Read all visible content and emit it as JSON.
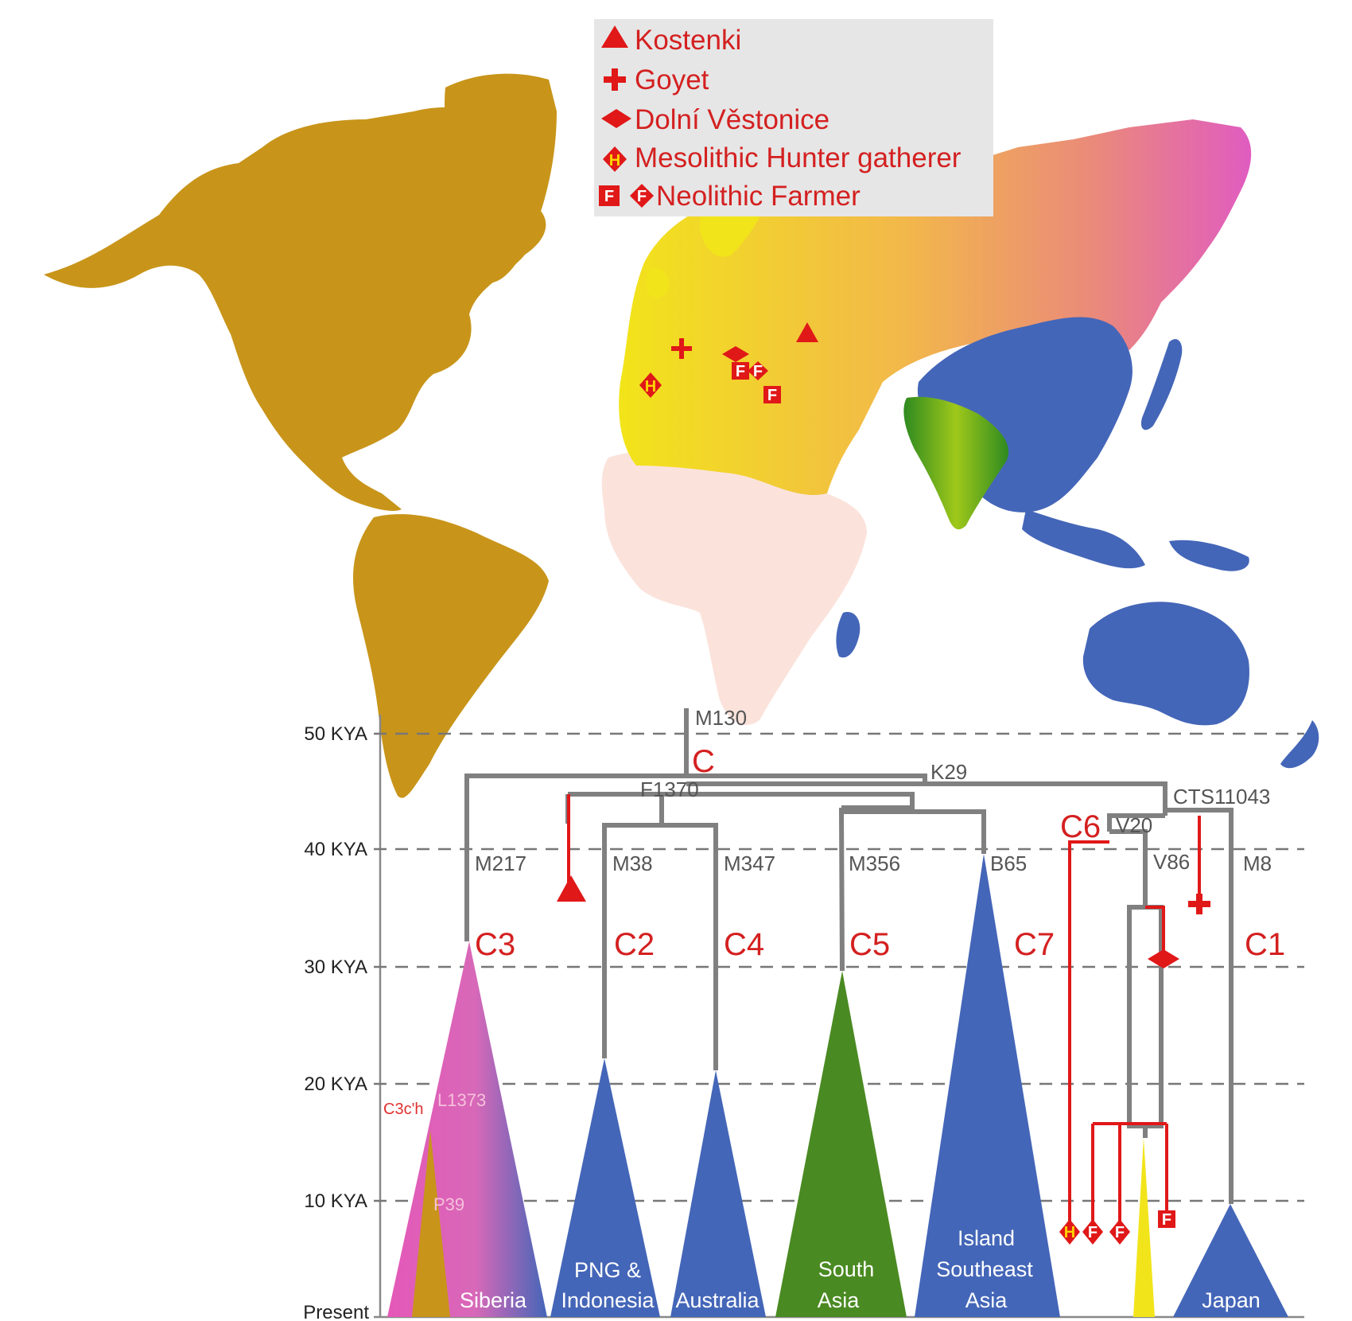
{
  "legend": {
    "kostenki": "Kostenki",
    "goyet": "Goyet",
    "dolni": "Dolní Věstonice",
    "mesolithic": "Mesolithic Hunter gatherer",
    "neolithic": "Neolithic Farmer",
    "h_letter": "H",
    "f_letter": "F"
  },
  "axis": {
    "y50": "50 KYA",
    "y40": "40 KYA",
    "y30": "30 KYA",
    "y20": "20 KYA",
    "y10": "10 KYA",
    "present": "Present"
  },
  "markers": {
    "m130": "M130",
    "k29": "K29",
    "f1370": "F1370",
    "cts11043": "CTS11043",
    "v20": "V20",
    "m217": "M217",
    "m38": "M38",
    "m347": "M347",
    "m356": "M356",
    "b65": "B65",
    "v86": "V86",
    "m8": "M8",
    "l1373": "L1373",
    "p39": "P39",
    "c3ch": "C3c'h"
  },
  "clades": {
    "c": "C",
    "c1": "C1",
    "c2": "C2",
    "c3": "C3",
    "c4": "C4",
    "c5": "C5",
    "c6": "C6",
    "c7": "C7"
  },
  "regions": {
    "siberia": "Siberia",
    "png1": "PNG &",
    "png2": "Indonesia",
    "australia": "Australia",
    "south1": "South",
    "south2": "Asia",
    "isea1": "Island",
    "isea2": "Southeast",
    "isea3": "Asia",
    "japan": "Japan"
  },
  "colors": {
    "americas": "#c8951a",
    "europe_mideast": "#f2e41a",
    "africa": "#fbe3dc",
    "east_asia": "#4466b8",
    "south_asia": "#4a8a22",
    "siberia_start": "#f0a050",
    "siberia_end": "#e060b8",
    "accent_red": "#e01818",
    "tree_grey": "#808080"
  }
}
